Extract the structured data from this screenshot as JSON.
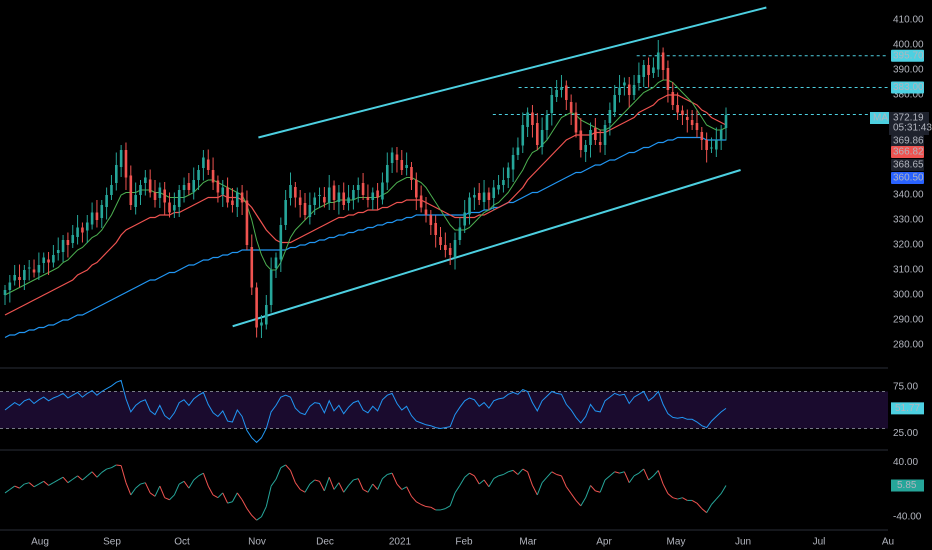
{
  "chart_data": {
    "type": "candlestick",
    "colors": {
      "background": "#000000",
      "up": "#26a69a",
      "down": "#ef5350",
      "channel": "#4dd0e1",
      "ma_short": "#4caf50",
      "ma_mid": "#ef5350",
      "ma_long": "#2196f3",
      "rsi": "#2196f3",
      "rsi_band": "#1a0b2e",
      "grid_text": "#b2b5be"
    },
    "x_axis": {
      "tick_labels": [
        "Aug",
        "Sep",
        "Oct",
        "Nov",
        "Dec",
        "2021",
        "Feb",
        "Mar",
        "Apr",
        "May",
        "Jun",
        "Jul",
        "Au"
      ]
    },
    "price_panel": {
      "ylim": [
        272,
        418
      ],
      "tick_labels": [
        "410.00",
        "400.00",
        "390.00",
        "380.00",
        "340.00",
        "330.00",
        "320.00",
        "310.00",
        "300.00",
        "290.00",
        "280.00"
      ],
      "tick_values": [
        410,
        400,
        390,
        380,
        340,
        330,
        320,
        310,
        300,
        290,
        280
      ],
      "price_tags": [
        {
          "label": "395.70",
          "value": 395.7,
          "style": "cyan"
        },
        {
          "label": "383.00",
          "value": 383.0,
          "style": "cyan"
        },
        {
          "label": "369.86",
          "value": 369.86,
          "style": "gray"
        },
        {
          "label": "366.82",
          "value": 366.82,
          "style": "red"
        },
        {
          "label": "368.65",
          "value": 368.65,
          "style": "gray"
        },
        {
          "label": "360.50",
          "value": 360.5,
          "style": "blue"
        }
      ],
      "ma_tag": {
        "prefix": "MA",
        "value": "372.19",
        "countdown": "05:31:43",
        "level": 372.19
      },
      "channel_upper": [
        [
          0.291,
          363.0
        ],
        [
          0.863,
          415.0
        ]
      ],
      "channel_lower": [
        [
          0.262,
          287.5
        ],
        [
          0.834,
          350.0
        ]
      ],
      "horizontal_levels": [
        {
          "value": 395.7,
          "from": 0.717
        },
        {
          "value": 383.0,
          "from": 0.584
        },
        {
          "value": 372.19,
          "from": 0.555
        }
      ],
      "closes": [
        302,
        305,
        308,
        306,
        310,
        311,
        309,
        312,
        315,
        313,
        316,
        318,
        322,
        320,
        324,
        327,
        325,
        329,
        333,
        330,
        336,
        340,
        344,
        352,
        358,
        347,
        336,
        340,
        344,
        347,
        341,
        338,
        343,
        337,
        333,
        336,
        342,
        344,
        342,
        346,
        350,
        355,
        350,
        345,
        341,
        343,
        337,
        336,
        341,
        337,
        320,
        303,
        287,
        289,
        296,
        310,
        315,
        328,
        338,
        344,
        339,
        336,
        332,
        336,
        339,
        340,
        337,
        343,
        338,
        341,
        336,
        339,
        342,
        344,
        340,
        338,
        341,
        339,
        345,
        352,
        357,
        354,
        350,
        352,
        346,
        339,
        335,
        332,
        328,
        324,
        320,
        318,
        316,
        322,
        327,
        333,
        339,
        340,
        338,
        341,
        338,
        343,
        344,
        346,
        351,
        356,
        359,
        368,
        373,
        368,
        360,
        366,
        372,
        380,
        382,
        383,
        378,
        373,
        365,
        358,
        360,
        366,
        362,
        360,
        368,
        374,
        380,
        383,
        385,
        380,
        384,
        388,
        392,
        388,
        391,
        397,
        390,
        382,
        376,
        373,
        372,
        370,
        368,
        366,
        362,
        358,
        359,
        362,
        366,
        372
      ],
      "ma_short": [
        300,
        301,
        302,
        303,
        304,
        305,
        306,
        307,
        308,
        309,
        310,
        311,
        313,
        314,
        316,
        318,
        319,
        321,
        323,
        324,
        326,
        329,
        332,
        336,
        340,
        341,
        341,
        341,
        342,
        342,
        342,
        341,
        341,
        340,
        339,
        339,
        339,
        339,
        340,
        341,
        343,
        345,
        346,
        346,
        345,
        344,
        343,
        342,
        341,
        340,
        336,
        330,
        322,
        316,
        312,
        310,
        310,
        313,
        318,
        323,
        326,
        328,
        330,
        332,
        334,
        335,
        336,
        337,
        337,
        338,
        338,
        338,
        338,
        339,
        339,
        339,
        339,
        339,
        340,
        341,
        343,
        345,
        346,
        347,
        347,
        346,
        345,
        343,
        340,
        337,
        334,
        331,
        328,
        326,
        326,
        326,
        327,
        329,
        331,
        333,
        334,
        336,
        337,
        339,
        341,
        344,
        347,
        350,
        354,
        357,
        358,
        360,
        362,
        365,
        368,
        371,
        372,
        373,
        372,
        370,
        369,
        368,
        367,
        366,
        366,
        367,
        369,
        371,
        373,
        375,
        377,
        379,
        381,
        382,
        383,
        385,
        386,
        386,
        385,
        383,
        381,
        379,
        377,
        374,
        371,
        368,
        367,
        366,
        366,
        367
      ],
      "ma_mid": [
        292,
        293,
        294,
        295,
        296,
        297,
        298,
        299,
        300,
        301,
        302,
        303,
        304,
        305,
        306,
        308,
        309,
        310,
        312,
        313,
        315,
        317,
        319,
        321,
        324,
        326,
        327,
        328,
        329,
        330,
        331,
        331,
        332,
        332,
        332,
        333,
        333,
        334,
        335,
        336,
        337,
        338,
        339,
        339,
        339,
        340,
        339,
        339,
        339,
        338,
        337,
        335,
        332,
        329,
        326,
        324,
        322,
        321,
        321,
        321,
        322,
        323,
        324,
        325,
        326,
        327,
        328,
        329,
        330,
        331,
        331,
        332,
        332,
        333,
        333,
        334,
        334,
        334,
        335,
        335,
        336,
        337,
        337,
        338,
        338,
        338,
        338,
        337,
        336,
        335,
        334,
        333,
        332,
        331,
        331,
        331,
        331,
        331,
        332,
        332,
        333,
        334,
        335,
        336,
        337,
        339,
        341,
        343,
        346,
        348,
        350,
        352,
        354,
        356,
        358,
        360,
        362,
        363,
        364,
        364,
        364,
        364,
        365,
        365,
        365,
        366,
        367,
        368,
        369,
        370,
        371,
        373,
        374,
        375,
        376,
        378,
        379,
        380,
        380,
        380,
        379,
        378,
        377,
        376,
        374,
        373,
        371,
        370,
        369,
        368
      ],
      "ma_long": [
        283,
        284,
        284,
        285,
        285,
        286,
        286,
        287,
        287,
        288,
        288,
        289,
        290,
        290,
        291,
        292,
        292,
        293,
        294,
        295,
        296,
        297,
        298,
        299,
        300,
        301,
        302,
        303,
        304,
        305,
        306,
        306,
        307,
        308,
        309,
        309,
        310,
        311,
        312,
        312,
        313,
        314,
        314,
        315,
        315,
        316,
        316,
        317,
        317,
        318,
        318,
        318,
        318,
        318,
        318,
        318,
        318,
        318,
        318,
        319,
        319,
        320,
        320,
        321,
        321,
        322,
        322,
        323,
        323,
        324,
        324,
        325,
        325,
        326,
        326,
        327,
        327,
        328,
        328,
        329,
        329,
        330,
        330,
        331,
        331,
        332,
        332,
        332,
        332,
        332,
        332,
        332,
        332,
        332,
        332,
        332,
        333,
        333,
        333,
        334,
        334,
        335,
        335,
        336,
        337,
        337,
        338,
        339,
        340,
        341,
        341,
        342,
        343,
        344,
        345,
        346,
        347,
        348,
        349,
        349,
        350,
        351,
        352,
        352,
        353,
        354,
        354,
        355,
        356,
        357,
        357,
        358,
        359,
        359,
        360,
        361,
        361,
        362,
        362,
        363,
        363,
        363,
        363,
        363,
        363,
        362,
        362,
        362,
        362,
        362
      ]
    },
    "rsi_panel": {
      "ylim": [
        10,
        90
      ],
      "tick_labels": [
        "75.00",
        "25.00"
      ],
      "tick_values": [
        75,
        25
      ],
      "band": [
        30,
        70
      ],
      "current_label": "51.77",
      "current_value": 51.77,
      "values": [
        50,
        54,
        58,
        55,
        60,
        62,
        57,
        61,
        64,
        60,
        63,
        65,
        68,
        63,
        66,
        69,
        64,
        68,
        71,
        66,
        70,
        73,
        76,
        80,
        82,
        62,
        48,
        55,
        59,
        61,
        49,
        45,
        55,
        44,
        40,
        47,
        58,
        61,
        55,
        62,
        66,
        69,
        56,
        47,
        43,
        49,
        38,
        37,
        50,
        43,
        28,
        20,
        15,
        20,
        30,
        48,
        55,
        64,
        66,
        64,
        52,
        47,
        45,
        54,
        58,
        57,
        47,
        60,
        49,
        55,
        46,
        53,
        58,
        60,
        50,
        47,
        54,
        49,
        61,
        66,
        68,
        57,
        50,
        54,
        44,
        38,
        36,
        34,
        33,
        31,
        30,
        31,
        32,
        45,
        53,
        60,
        63,
        61,
        54,
        58,
        52,
        60,
        62,
        63,
        67,
        69,
        67,
        72,
        70,
        58,
        49,
        60,
        65,
        70,
        68,
        67,
        56,
        50,
        42,
        36,
        43,
        56,
        49,
        48,
        60,
        64,
        68,
        66,
        67,
        57,
        64,
        67,
        70,
        60,
        64,
        70,
        56,
        46,
        42,
        41,
        42,
        40,
        40,
        37,
        33,
        31,
        38,
        43,
        48,
        51.77
      ]
    },
    "macd_panel": {
      "ylim": [
        -55,
        55
      ],
      "tick_labels": [
        "40.00",
        "-40.00"
      ],
      "tick_values": [
        40,
        -40
      ],
      "current_label": "5.85",
      "current_value": 5.85,
      "values": [
        -5,
        0,
        5,
        2,
        8,
        10,
        4,
        8,
        12,
        6,
        10,
        14,
        18,
        10,
        15,
        20,
        14,
        20,
        26,
        18,
        25,
        30,
        32,
        36,
        35,
        10,
        -8,
        2,
        8,
        10,
        -5,
        -10,
        5,
        -12,
        -15,
        -8,
        8,
        12,
        2,
        14,
        20,
        24,
        5,
        -8,
        -12,
        -5,
        -20,
        -18,
        -5,
        -15,
        -28,
        -38,
        -45,
        -40,
        -25,
        5,
        15,
        32,
        36,
        28,
        10,
        0,
        -4,
        8,
        14,
        12,
        -2,
        18,
        0,
        10,
        -4,
        6,
        14,
        16,
        0,
        -4,
        8,
        0,
        16,
        22,
        24,
        8,
        0,
        4,
        -10,
        -18,
        -22,
        -25,
        -26,
        -30,
        -30,
        -28,
        -24,
        -5,
        6,
        18,
        24,
        20,
        8,
        14,
        4,
        16,
        20,
        22,
        26,
        28,
        22,
        30,
        26,
        6,
        -8,
        10,
        18,
        26,
        22,
        20,
        4,
        -6,
        -16,
        -24,
        -12,
        6,
        -2,
        -4,
        14,
        20,
        26,
        24,
        26,
        10,
        20,
        24,
        30,
        14,
        20,
        28,
        8,
        -6,
        -12,
        -14,
        -12,
        -16,
        -16,
        -20,
        -28,
        -34,
        -22,
        -14,
        -6,
        5.85
      ]
    }
  }
}
